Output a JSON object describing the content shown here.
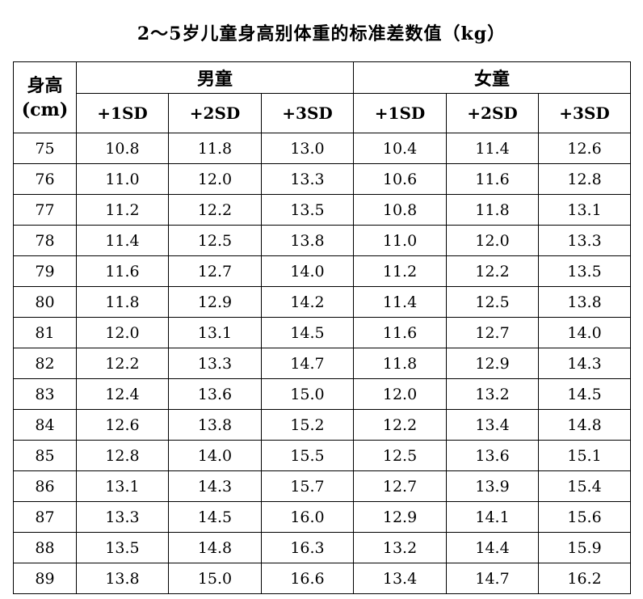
{
  "title": "2～5岁儿童身高别体重的标准差数值（kg）",
  "header": {
    "height_label_line1": "身高",
    "height_label_line2": "(cm)",
    "boys": "男童",
    "girls": "女童",
    "sd": [
      "+1SD",
      "+2SD",
      "+3SD",
      "+1SD",
      "+2SD",
      "+3SD"
    ]
  },
  "rows": [
    {
      "h": "75",
      "v": [
        "10.8",
        "11.8",
        "13.0",
        "10.4",
        "11.4",
        "12.6"
      ]
    },
    {
      "h": "76",
      "v": [
        "11.0",
        "12.0",
        "13.3",
        "10.6",
        "11.6",
        "12.8"
      ]
    },
    {
      "h": "77",
      "v": [
        "11.2",
        "12.2",
        "13.5",
        "10.8",
        "11.8",
        "13.1"
      ]
    },
    {
      "h": "78",
      "v": [
        "11.4",
        "12.5",
        "13.8",
        "11.0",
        "12.0",
        "13.3"
      ]
    },
    {
      "h": "79",
      "v": [
        "11.6",
        "12.7",
        "14.0",
        "11.2",
        "12.2",
        "13.5"
      ]
    },
    {
      "h": "80",
      "v": [
        "11.8",
        "12.9",
        "14.2",
        "11.4",
        "12.5",
        "13.8"
      ]
    },
    {
      "h": "81",
      "v": [
        "12.0",
        "13.1",
        "14.5",
        "11.6",
        "12.7",
        "14.0"
      ]
    },
    {
      "h": "82",
      "v": [
        "12.2",
        "13.3",
        "14.7",
        "11.8",
        "12.9",
        "14.3"
      ]
    },
    {
      "h": "83",
      "v": [
        "12.4",
        "13.6",
        "15.0",
        "12.0",
        "13.2",
        "14.5"
      ]
    },
    {
      "h": "84",
      "v": [
        "12.6",
        "13.8",
        "15.2",
        "12.2",
        "13.4",
        "14.8"
      ]
    },
    {
      "h": "85",
      "v": [
        "12.8",
        "14.0",
        "15.5",
        "12.5",
        "13.6",
        "15.1"
      ]
    },
    {
      "h": "86",
      "v": [
        "13.1",
        "14.3",
        "15.7",
        "12.7",
        "13.9",
        "15.4"
      ]
    },
    {
      "h": "87",
      "v": [
        "13.3",
        "14.5",
        "16.0",
        "12.9",
        "14.1",
        "15.6"
      ]
    },
    {
      "h": "88",
      "v": [
        "13.5",
        "14.8",
        "16.3",
        "13.2",
        "14.4",
        "15.9"
      ]
    },
    {
      "h": "89",
      "v": [
        "13.8",
        "15.0",
        "16.6",
        "13.4",
        "14.7",
        "16.2"
      ]
    }
  ]
}
